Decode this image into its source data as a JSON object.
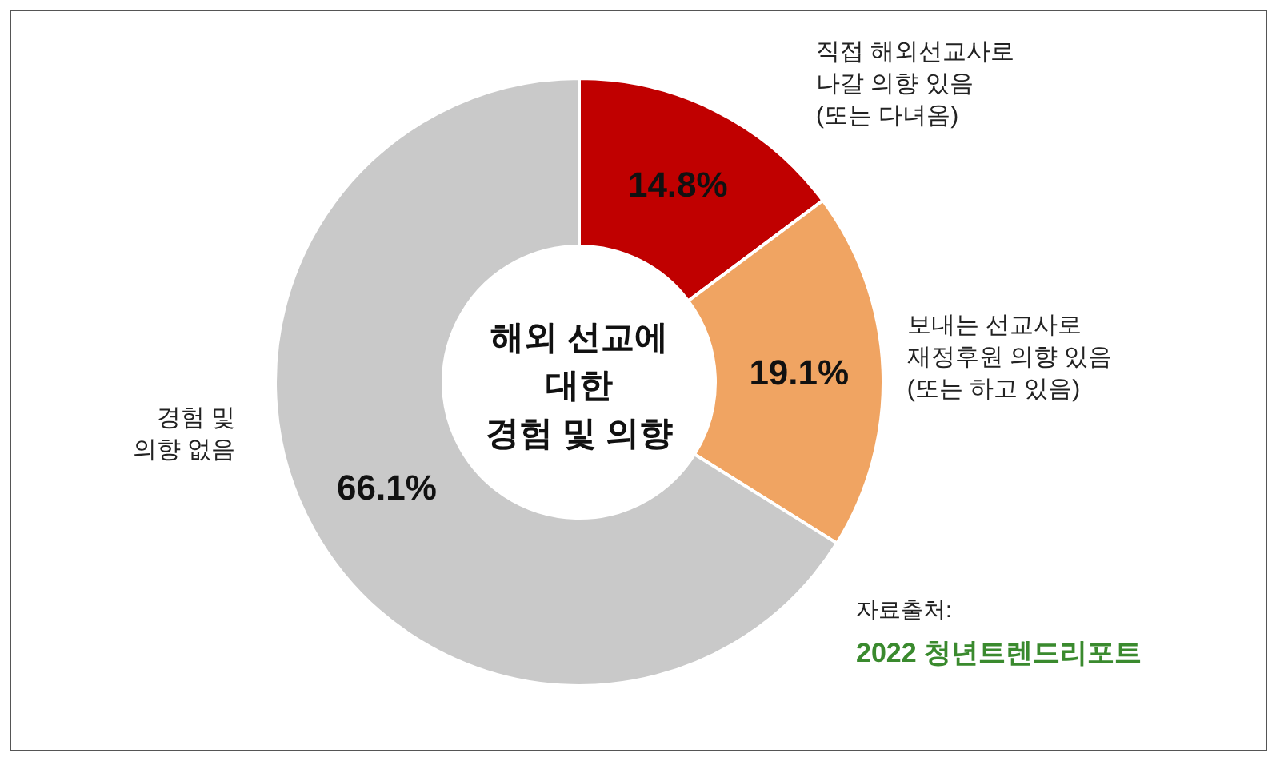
{
  "chart_data": {
    "type": "donut",
    "title": "해외 선교에\n대한\n경험 및 의향",
    "categories": [
      "직접 해외선교사로\n나갈 의향 있음\n(또는 다녀옴)",
      "보내는 선교사로\n재정후원 의향 있음\n(또는 하고 있음)",
      "경험 및\n의향 없음"
    ],
    "values": [
      14.8,
      19.1,
      66.1
    ],
    "colors": [
      "#c00000",
      "#f0a462",
      "#c9c9c9"
    ],
    "value_labels": [
      "14.8%",
      "19.1%",
      "66.1%"
    ],
    "annotations": [
      "자료출처:",
      "2022 청년트렌드리포트"
    ]
  }
}
